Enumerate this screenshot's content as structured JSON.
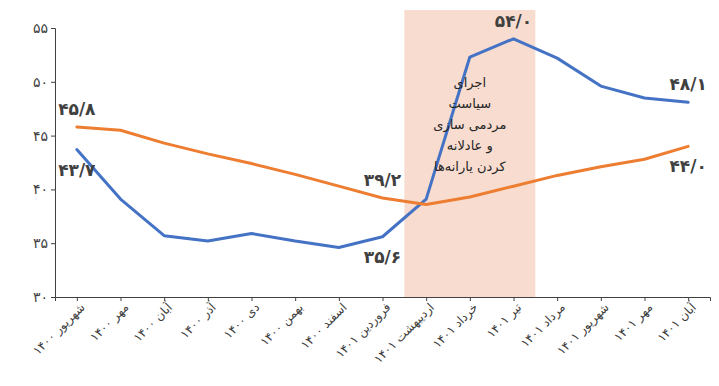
{
  "chart_data": {
    "type": "line",
    "categories": [
      "شهریور ۱۴۰۰",
      "مهر ۱۴۰۰",
      "آبان ۱۴۰۰",
      "آذر ۱۴۰۰",
      "دی ۱۴۰۰",
      "بهمن ۱۴۰۰",
      "اسفند ۱۴۰۰",
      "فروردین ۱۴۰۱",
      "اردیبهشت ۱۴۰۱",
      "خرداد ۱۴۰۱",
      "تیر ۱۴۰۱",
      "مرداد ۱۴۰۱",
      "شهریور ۱۴۰۱",
      "مهر ۱۴۰۱",
      "آبان ۱۴۰۱"
    ],
    "series": [
      {
        "color": "#4472c4",
        "values": [
          43.7,
          39.1,
          35.7,
          35.2,
          35.9,
          35.2,
          34.6,
          35.6,
          39.1,
          52.3,
          54.0,
          52.2,
          49.6,
          48.5,
          48.1
        ],
        "value_labels": [
          "۴۳/۷",
          null,
          null,
          null,
          null,
          null,
          null,
          "۳۵/۶",
          null,
          null,
          "۵۴/۰",
          null,
          null,
          null,
          "۴۸/۱"
        ]
      },
      {
        "color": "#ed7d31",
        "values": [
          45.8,
          45.5,
          44.3,
          43.3,
          42.4,
          41.4,
          40.3,
          39.2,
          38.6,
          39.3,
          40.3,
          41.3,
          42.1,
          42.8,
          44.0
        ],
        "value_labels": [
          "۴۵/۸",
          null,
          null,
          null,
          null,
          null,
          null,
          "۳۹/۲",
          null,
          null,
          null,
          null,
          null,
          null,
          "۴۴/۰"
        ]
      }
    ],
    "ylim": [
      30,
      55
    ],
    "yticks": [
      {
        "value": 30,
        "label": "۳۰"
      },
      {
        "value": 35,
        "label": "۳۵"
      },
      {
        "value": 40,
        "label": "۴۰"
      },
      {
        "value": 45,
        "label": "۴۵"
      },
      {
        "value": 50,
        "label": "۵۰"
      },
      {
        "value": 55,
        "label": "۵۵"
      }
    ],
    "grid": false,
    "data_labels": true,
    "annotations": [
      {
        "text": [
          "اجرای",
          "سیاست",
          "مردمی سازی",
          "و عادلانه",
          "کردن یارانه‌ها"
        ],
        "span": [
          8,
          10
        ],
        "color": "#f8dccf"
      }
    ]
  }
}
